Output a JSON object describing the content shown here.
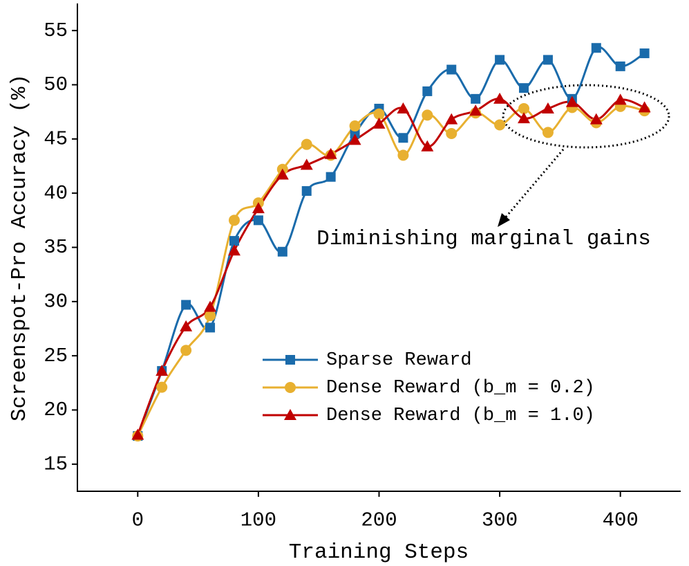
{
  "chart_data": {
    "type": "line",
    "x_label": "Training Steps",
    "y_label": "Screenspot-Pro Accuracy (%)",
    "x": [
      0,
      20,
      40,
      60,
      80,
      100,
      120,
      140,
      160,
      180,
      200,
      220,
      240,
      260,
      280,
      300,
      320,
      340,
      360,
      380,
      400,
      420
    ],
    "series": [
      {
        "name": "Sparse Reward",
        "color": "#1a6bab",
        "marker": "square",
        "values": [
          17.6,
          23.6,
          29.7,
          27.6,
          35.6,
          37.5,
          34.6,
          40.2,
          41.5,
          45.5,
          47.8,
          45.1,
          49.4,
          51.4,
          48.7,
          52.3,
          49.7,
          52.3,
          48.7,
          53.4,
          51.7,
          52.9
        ]
      },
      {
        "name": "Dense Reward (b_m = 0.2)",
        "color": "#e8b030",
        "marker": "circle",
        "values": [
          17.6,
          22.1,
          25.5,
          28.7,
          37.5,
          39.1,
          42.2,
          44.5,
          43.5,
          46.2,
          47.3,
          43.5,
          47.2,
          45.5,
          47.4,
          46.3,
          47.8,
          45.6,
          47.9,
          46.5,
          48.0,
          47.6
        ]
      },
      {
        "name": "Dense Reward (b_m = 1.0)",
        "color": "#c00000",
        "marker": "triangle",
        "values": [
          17.7,
          23.6,
          27.7,
          29.5,
          34.7,
          38.6,
          41.7,
          42.6,
          43.6,
          44.9,
          46.4,
          47.8,
          44.3,
          46.8,
          47.6,
          48.7,
          46.9,
          47.8,
          48.4,
          46.8,
          48.6,
          47.9
        ]
      }
    ],
    "xlim": [
      -50,
      450
    ],
    "xticks": [
      0,
      100,
      200,
      300,
      400
    ],
    "ylim": [
      12.5,
      57.5
    ],
    "yticks": [
      15,
      20,
      25,
      30,
      35,
      40,
      45,
      50,
      55
    ],
    "smooth": true,
    "annotation": "Diminishing marginal gains"
  }
}
